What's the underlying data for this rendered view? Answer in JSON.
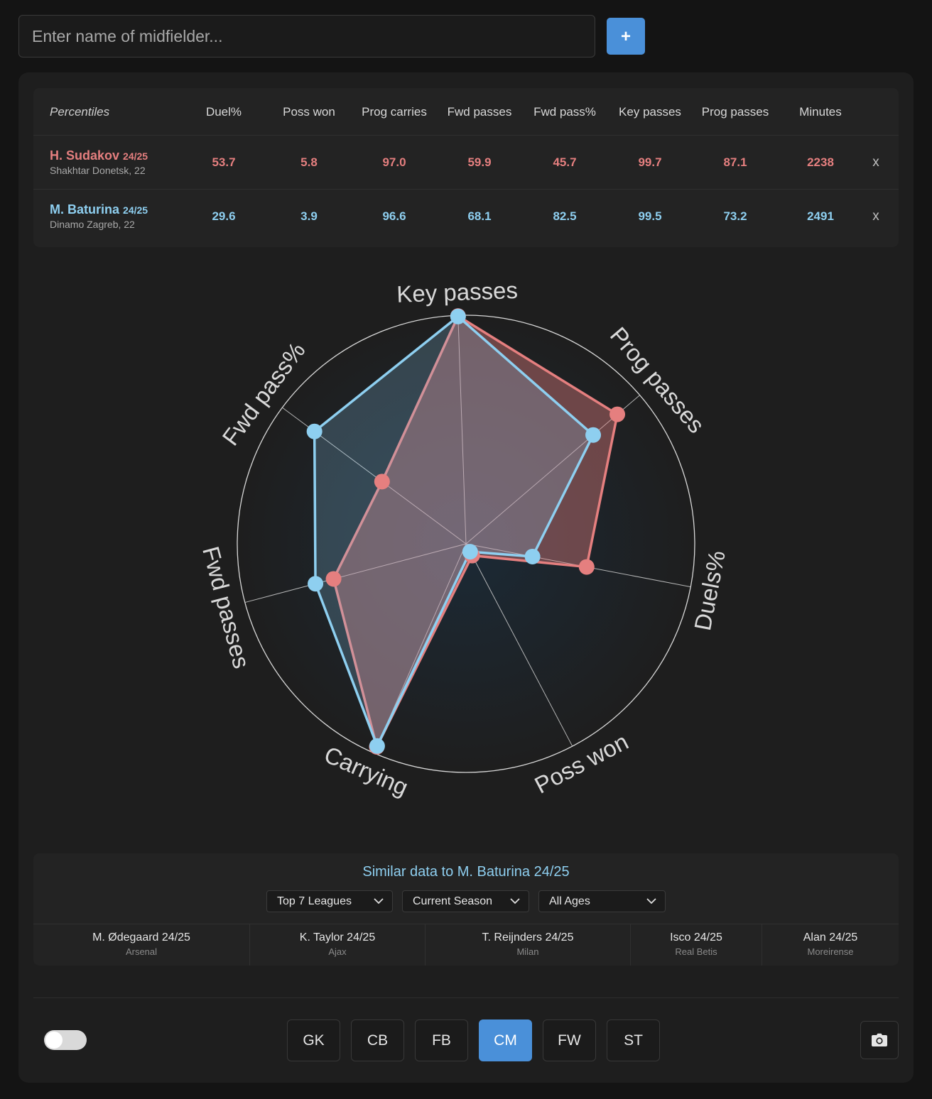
{
  "search": {
    "placeholder": "Enter name of midfielder...",
    "add_label": "+"
  },
  "table": {
    "headers": [
      "Percentiles",
      "Duel%",
      "Poss won",
      "Prog carries",
      "Fwd passes",
      "Fwd pass%",
      "Key passes",
      "Prog passes",
      "Minutes"
    ],
    "rows": [
      {
        "name": "H. Sudakov",
        "season": "24/25",
        "club": "Shakhtar Donetsk, 22",
        "values": [
          "53.7",
          "5.8",
          "97.0",
          "59.9",
          "45.7",
          "99.7",
          "87.1",
          "2238"
        ],
        "remove": "x",
        "color": "#e57f7f"
      },
      {
        "name": "M. Baturina",
        "season": "24/25",
        "club": "Dinamo Zagreb, 22",
        "values": [
          "29.6",
          "3.9",
          "96.6",
          "68.1",
          "82.5",
          "99.5",
          "73.2",
          "2491"
        ],
        "remove": "x",
        "color": "#8ecff0"
      }
    ]
  },
  "chart_data": {
    "type": "radar",
    "axes": [
      "Key passes",
      "Prog passes",
      "Duels%",
      "Poss won",
      "Carrying",
      "Fwd passes",
      "Fwd pass%"
    ],
    "series": [
      {
        "name": "H. Sudakov 24/25",
        "color": "#e57f7f",
        "values": [
          99.7,
          87.1,
          53.7,
          5.8,
          97.0,
          59.9,
          45.7
        ]
      },
      {
        "name": "M. Baturina 24/25",
        "color": "#8ecff0",
        "values": [
          99.5,
          73.2,
          29.6,
          3.9,
          96.6,
          68.1,
          82.5
        ]
      }
    ],
    "range": [
      0,
      100
    ]
  },
  "similar": {
    "title": "Similar data to M. Baturina 24/25",
    "filters": [
      "Top 7 Leagues",
      "Current Season",
      "All Ages"
    ],
    "players": [
      {
        "name": "M. Ødegaard 24/25",
        "club": "Arsenal"
      },
      {
        "name": "K. Taylor 24/25",
        "club": "Ajax"
      },
      {
        "name": "T. Reijnders 24/25",
        "club": "Milan"
      },
      {
        "name": "Isco 24/25",
        "club": "Real Betis"
      },
      {
        "name": "Alan 24/25",
        "club": "Moreirense"
      }
    ]
  },
  "positions": {
    "items": [
      "GK",
      "CB",
      "FB",
      "CM",
      "FW",
      "ST"
    ],
    "active": "CM"
  },
  "toolbar": {
    "camera_icon": "camera-icon",
    "toggle_state": "off"
  },
  "colors": {
    "accent": "#4a90d9",
    "player1": "#e57f7f",
    "player2": "#8ecff0"
  }
}
